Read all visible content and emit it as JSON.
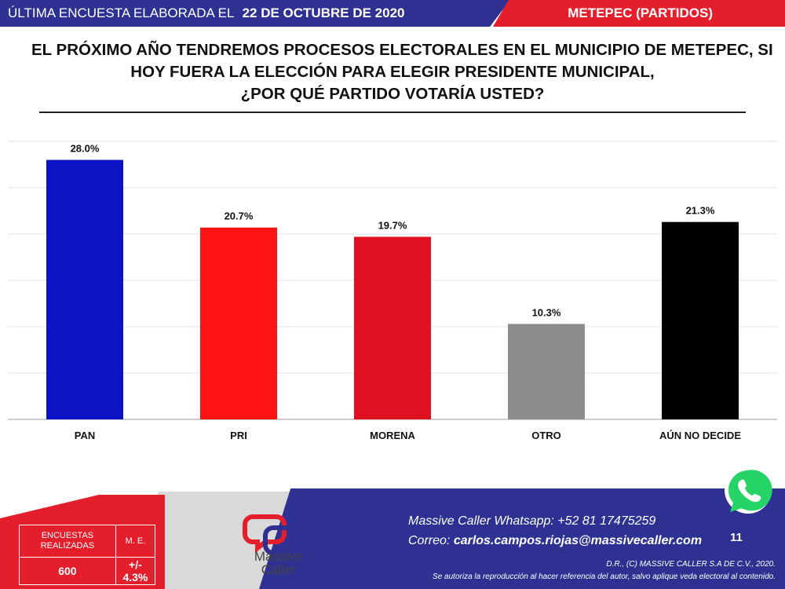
{
  "header": {
    "survey_label": "ÚLTIMA ENCUESTA ELABORADA EL",
    "survey_date": "22 DE OCTUBRE DE 2020",
    "section": "METEPEC (PARTIDOS)"
  },
  "question": {
    "line1": "EL PRÓXIMO AÑO TENDREMOS PROCESOS ELECTORALES EN EL MUNICIPIO DE METEPEC, SI",
    "line2": "HOY FUERA LA ELECCIÓN PARA ELEGIR PRESIDENTE MUNICIPAL,",
    "line3": "¿POR QUÉ PARTIDO VOTARÍA USTED?"
  },
  "chart_data": {
    "type": "bar",
    "categories": [
      "PAN",
      "PRI",
      "MORENA",
      "OTRO",
      "AÚN NO DECIDE"
    ],
    "values": [
      28.0,
      20.7,
      19.7,
      10.3,
      21.3
    ],
    "value_labels": [
      "28.0%",
      "20.7%",
      "19.7%",
      "10.3%",
      "21.3%"
    ],
    "colors": [
      "#0a14c4",
      "#ff1212",
      "#e01020",
      "#8c8c8c",
      "#000000"
    ],
    "ylim": [
      0,
      30
    ],
    "grid": true,
    "legend": "none"
  },
  "stats": {
    "surveys_label": "ENCUESTAS REALIZADAS",
    "surveys_value": "600",
    "me_label": "M. E.",
    "me_value": "+/- 4.3%"
  },
  "brand": {
    "name_line1": "Massive",
    "name_line2": "Caller"
  },
  "contact": {
    "whatsapp_label": "Massive Caller Whatsapp:",
    "whatsapp_number": "+52 81 17475259",
    "email_label": "Correo:",
    "email": "carlos.campos.riojas@massivecaller.com"
  },
  "page_number": "11",
  "legal": {
    "line1": "D.R., (C) MASSIVE CALLER S.A DE C.V., 2020.",
    "line2": "Se autoriza la reproducción al hacer referencia del autor, salvo aplique veda electoral al contenido."
  },
  "icons": {
    "whatsapp": "whatsapp-icon"
  }
}
